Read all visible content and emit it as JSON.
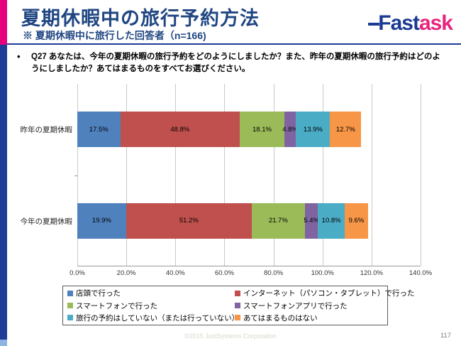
{
  "header": {
    "title": "夏期休暇中の旅行予約方法",
    "subtitle": "※ 夏期休暇中に旅行した回答者（n=166)",
    "logo": {
      "part1": "Fast",
      "part2": "ask"
    }
  },
  "question": {
    "bullet": "•",
    "text": "Q27 あなたは、今年の夏期休暇の旅行予約をどのようにしましたか？また、昨年の夏期休暇の旅行予約はどのようにしましたか？あてはまるものをすべてお選びください。"
  },
  "chart_data": {
    "type": "bar",
    "stacked": true,
    "orientation": "horizontal",
    "categories": [
      "昨年の夏期休暇",
      "今年の夏期休暇"
    ],
    "series": [
      {
        "name": "店頭で行った",
        "color": "#4F81BD",
        "values": [
          17.5,
          19.9
        ]
      },
      {
        "name": "インターネット（パソコン・タブレット）で行った",
        "color": "#C0504D",
        "values": [
          48.8,
          51.2
        ]
      },
      {
        "name": "スマートフォンで行った",
        "color": "#9BBB59",
        "values": [
          18.1,
          21.7
        ]
      },
      {
        "name": "スマートフォンアプリで行った",
        "color": "#8064A2",
        "values": [
          4.8,
          5.4
        ]
      },
      {
        "name": "旅行の予約はしていない（または行っていない）",
        "color": "#4BACC6",
        "values": [
          13.9,
          10.8
        ]
      },
      {
        "name": "あてはまるものはない",
        "color": "#F79646",
        "values": [
          12.7,
          9.6
        ]
      }
    ],
    "xlim": [
      0,
      140
    ],
    "tick_step": 20,
    "x_ticks": [
      "0.0%",
      "20.0%",
      "40.0%",
      "60.0%",
      "80.0%",
      "100.0%",
      "120.0%",
      "140.0%"
    ],
    "value_suffix": "%",
    "grid": true,
    "legend_position": "bottom",
    "gridline_color": "#C9C9C9"
  },
  "footer": {
    "copyright": "©2015 JustSystems Corporation",
    "page": "117"
  }
}
